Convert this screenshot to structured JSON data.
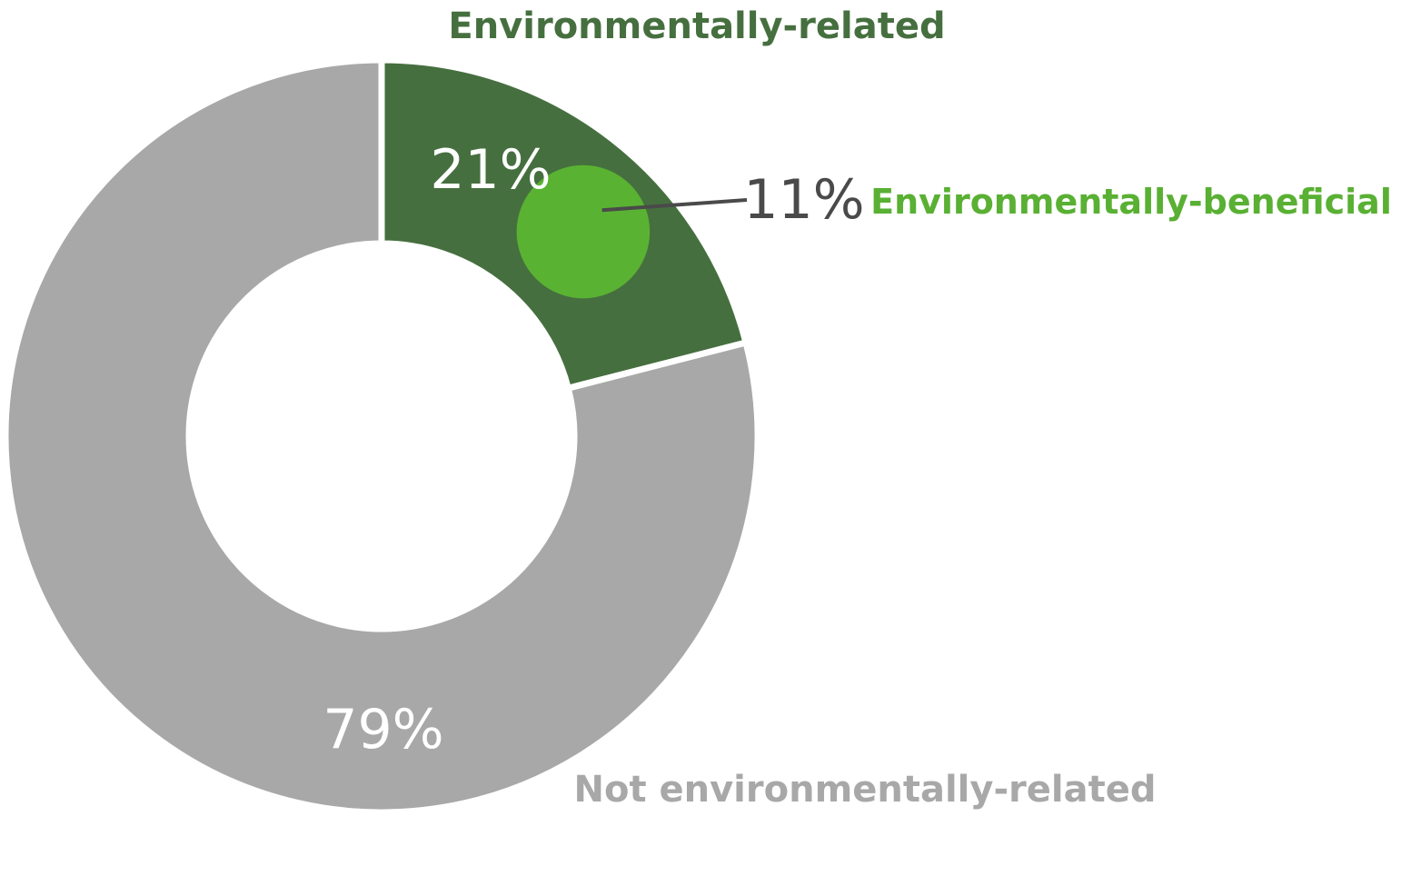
{
  "chart_data": {
    "type": "pie",
    "style": "donut",
    "slices": [
      {
        "label": "Environmentally-related",
        "value": 21,
        "value_label": "21%",
        "color": "#466f3f"
      },
      {
        "label": "Not environmentally-related",
        "value": 79,
        "value_label": "79%",
        "color": "#a8a8a8"
      }
    ],
    "subset": {
      "label": "Environmentally-beneficial",
      "value": 11,
      "value_label": "11%",
      "parent": "Environmentally-related",
      "color": "#5ab232",
      "label_color": "#59b033",
      "value_color": "#4a4a4a"
    }
  }
}
